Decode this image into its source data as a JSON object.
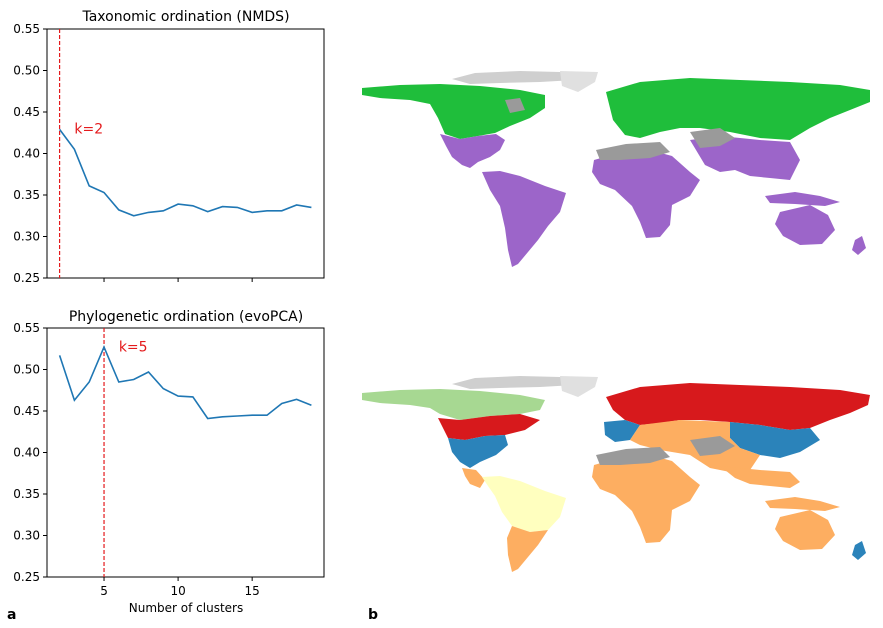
{
  "panel_labels": {
    "a": "a",
    "b": "b"
  },
  "colors": {
    "line": "#1f77b4",
    "vline": "#e41a1c",
    "green": "#1fbe3b",
    "purple": "#9c65c9",
    "gray": "#9a9a9a",
    "light_green": "#a7d892",
    "red": "#d7191c",
    "blue": "#2b83ba",
    "orange": "#fdae61",
    "yellow": "#ffffbf"
  },
  "chart_data": [
    {
      "type": "line",
      "title": "Taxonomic ordination (NMDS)",
      "xlabel": "",
      "ylabel": "",
      "x": [
        2,
        3,
        4,
        5,
        6,
        7,
        8,
        9,
        10,
        11,
        12,
        13,
        14,
        15,
        16,
        17,
        18,
        19
      ],
      "y": [
        0.429,
        0.405,
        0.361,
        0.353,
        0.332,
        0.325,
        0.329,
        0.331,
        0.339,
        0.337,
        0.33,
        0.336,
        0.335,
        0.329,
        0.331,
        0.331,
        0.338,
        0.335
      ],
      "xlim": [
        1.15,
        19.85
      ],
      "ylim": [
        0.25,
        0.55
      ],
      "yticks": [
        "0.55",
        "0.50",
        "0.45",
        "0.40",
        "0.35",
        "0.30",
        "0.25"
      ],
      "ytick_values": [
        0.55,
        0.5,
        0.45,
        0.4,
        0.35,
        0.3,
        0.25
      ],
      "xtick_values": [
        5,
        10,
        15
      ],
      "xtick_labels_shown": false,
      "vline_x": 2,
      "annotation": {
        "text": "k=2",
        "x": 3,
        "y": 0.43
      }
    },
    {
      "type": "line",
      "title": "Phylogenetic ordination (evoPCA)",
      "xlabel": "Number of clusters",
      "ylabel": "",
      "x": [
        2,
        3,
        4,
        5,
        6,
        7,
        8,
        9,
        10,
        11,
        12,
        13,
        14,
        15,
        16,
        17,
        18,
        19
      ],
      "y": [
        0.517,
        0.463,
        0.485,
        0.527,
        0.485,
        0.488,
        0.497,
        0.477,
        0.468,
        0.467,
        0.441,
        0.443,
        0.444,
        0.445,
        0.445,
        0.459,
        0.464,
        0.457
      ],
      "xlim": [
        1.15,
        19.85
      ],
      "ylim": [
        0.25,
        0.55
      ],
      "yticks": [
        "0.55",
        "0.50",
        "0.45",
        "0.40",
        "0.35",
        "0.30",
        "0.25"
      ],
      "ytick_values": [
        0.55,
        0.5,
        0.45,
        0.4,
        0.35,
        0.3,
        0.25
      ],
      "xticks": [
        "5",
        "10",
        "15"
      ],
      "xtick_values": [
        5,
        10,
        15
      ],
      "xtick_labels_shown": true,
      "vline_x": 5,
      "annotation": {
        "text": "k=5",
        "x": 6,
        "y": 0.528
      }
    }
  ]
}
